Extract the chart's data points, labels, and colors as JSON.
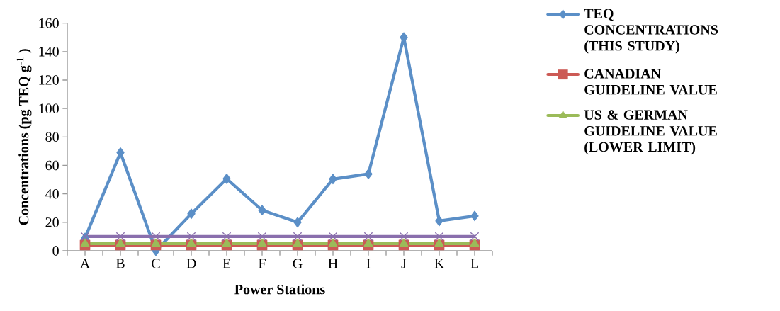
{
  "chart_data": {
    "type": "line",
    "xlabel": "Power Stations",
    "ylabel": "Concentrations (pg TEQ g$^{-1}$ )",
    "categories": [
      "A",
      "B",
      "C",
      "D",
      "E",
      "F",
      "G",
      "H",
      "I",
      "J",
      "K",
      "L"
    ],
    "ylim": [
      0,
      160
    ],
    "yticks": [
      0,
      20,
      40,
      60,
      80,
      100,
      120,
      140,
      160
    ],
    "grid": false,
    "legend": "right",
    "series": [
      {
        "name": "TEQ CONCENTRATIONS (THIS STUDY)",
        "color": "#5b8fc7",
        "marker": "diamond",
        "values": [
          9,
          69,
          0,
          26,
          50.6,
          28.5,
          20,
          50.4,
          54,
          150,
          21,
          24.5
        ]
      },
      {
        "name": "CANADIAN GUIDELINE VALUE",
        "color": "#cc5a55",
        "marker": "square",
        "values": [
          4,
          4,
          4,
          4,
          4,
          4,
          4,
          4,
          4,
          4,
          4,
          4
        ]
      },
      {
        "name": "US & GERMAN GUIDELINE VALUE (LOWER LIMIT)",
        "color": "#9bbb59",
        "marker": "triangle",
        "values": [
          5,
          5,
          5,
          5,
          5,
          5,
          5,
          5,
          5,
          5,
          5,
          5
        ]
      },
      {
        "color": "#8a6fad",
        "marker": "cross",
        "values": [
          10,
          10,
          10,
          10,
          10,
          10,
          10,
          10,
          10,
          10,
          10,
          10
        ]
      }
    ]
  }
}
